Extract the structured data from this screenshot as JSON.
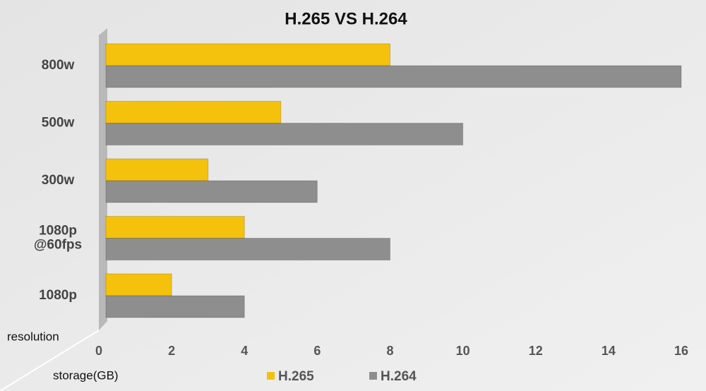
{
  "chart_data": {
    "type": "bar",
    "orientation": "horizontal",
    "title": "H.265 VS H.264",
    "categories": [
      "800w",
      "500w",
      "300w",
      "1080p\n@60fps",
      "1080p"
    ],
    "series": [
      {
        "name": "H.265",
        "color": "#f4c20d",
        "values": [
          8,
          5,
          3,
          4,
          2
        ]
      },
      {
        "name": "H.264",
        "color": "#8e8e8e",
        "values": [
          16,
          10,
          6,
          8,
          4
        ]
      }
    ],
    "xlabel": "storage(GB)",
    "ylabel": "resolution",
    "xlim": [
      0,
      16
    ],
    "xticks": [
      0,
      2,
      4,
      6,
      8,
      10,
      12,
      14,
      16
    ],
    "grid": false,
    "legend": "bottom"
  }
}
